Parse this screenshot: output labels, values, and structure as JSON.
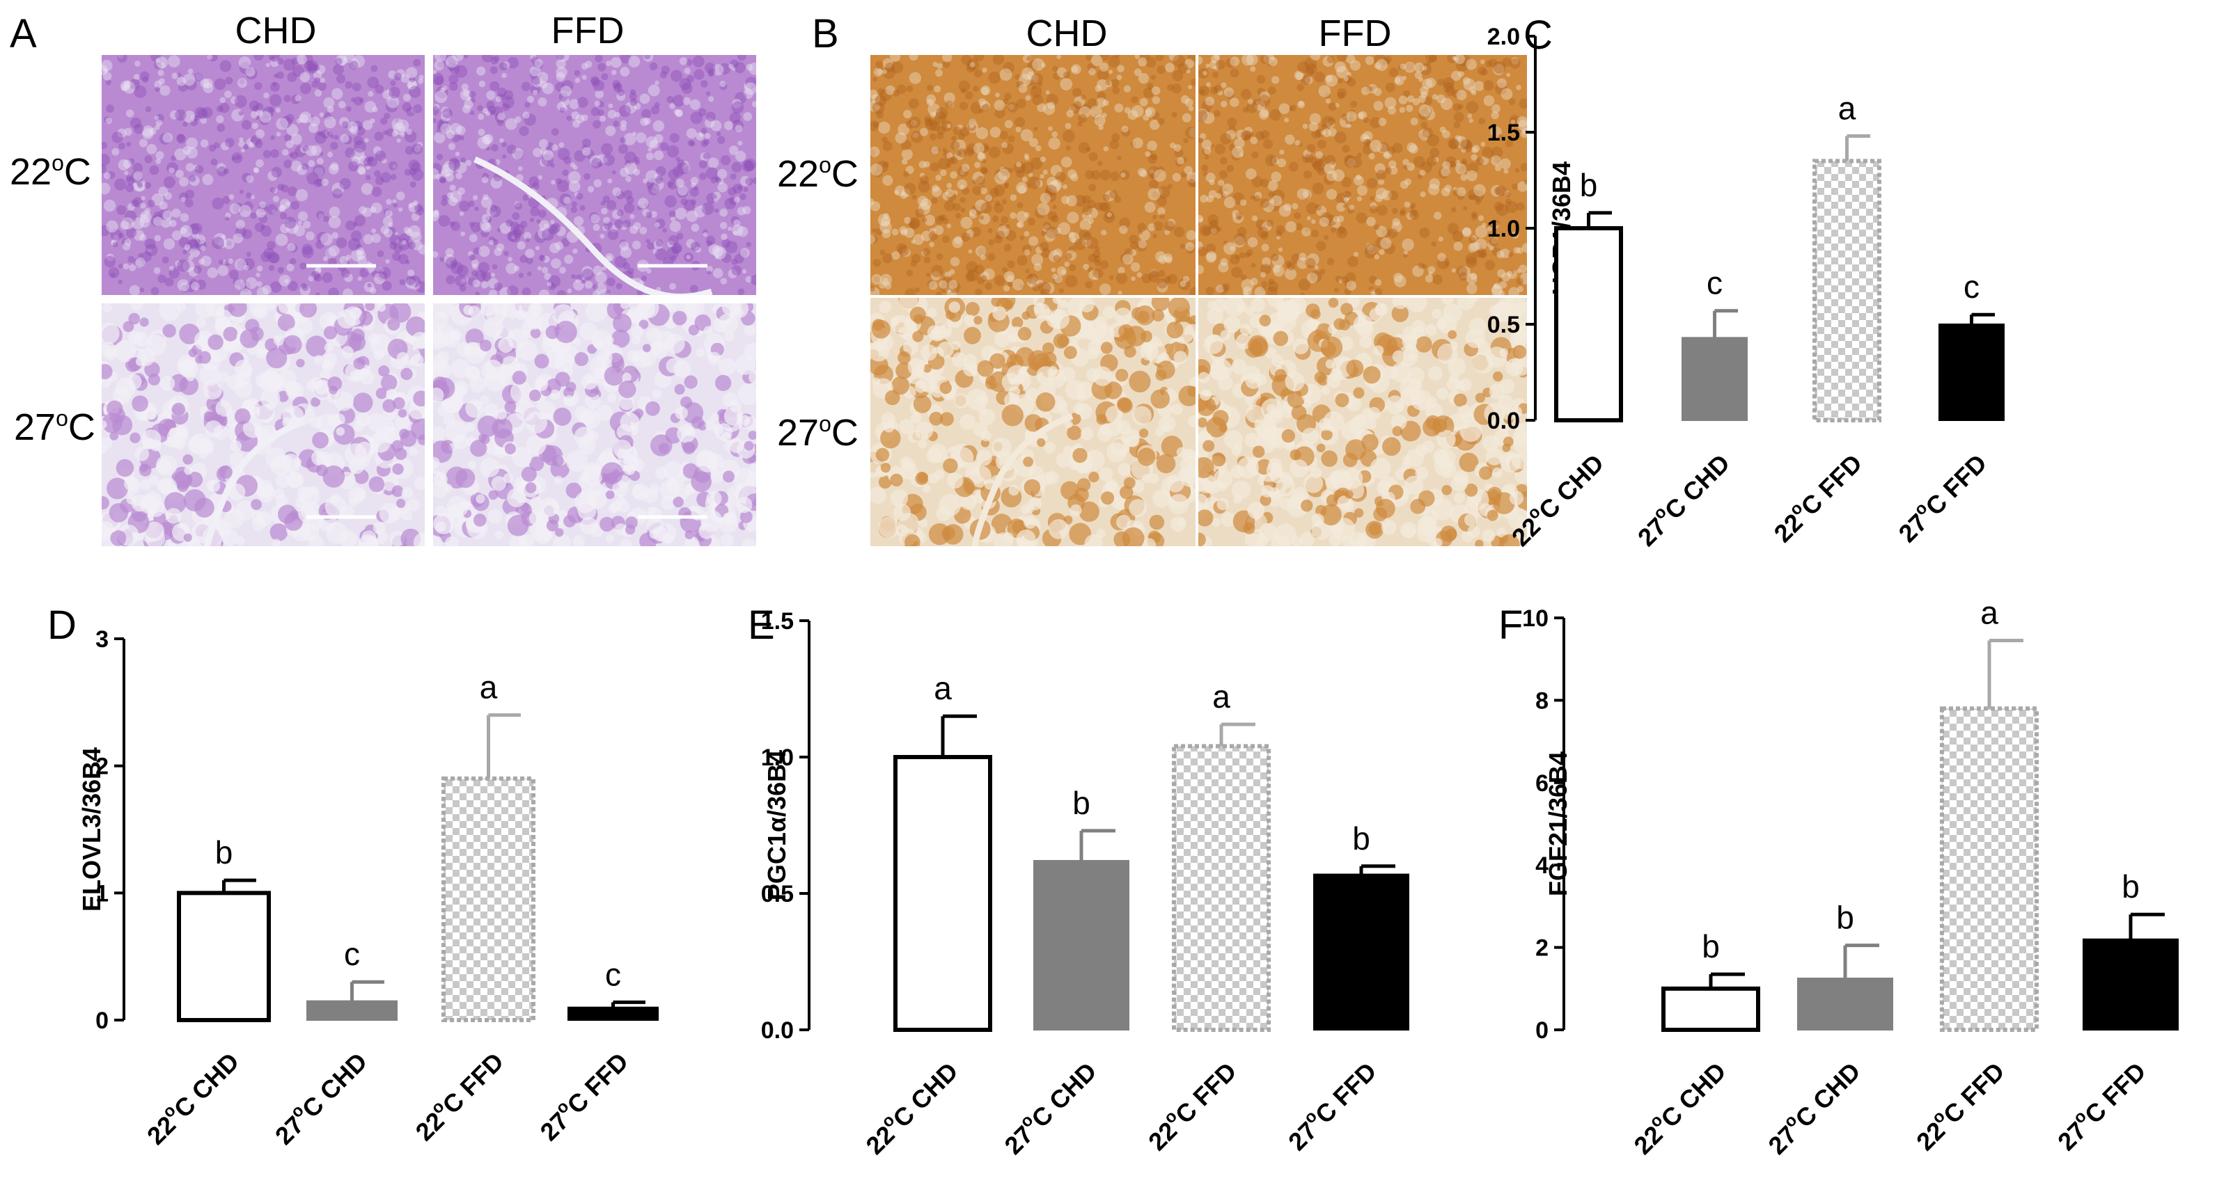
{
  "micrographs": [
    {
      "panel": "A",
      "columns": [
        "CHD",
        "FFD"
      ],
      "rows": [
        "22",
        "27"
      ],
      "row_unit": "C",
      "row_degree": "o",
      "stain": "H&E",
      "colors": {
        "base": "#b98ad2",
        "dark": "#8e4fb7",
        "light": "#e8e2f1",
        "vessel": "#f2f0f7"
      }
    },
    {
      "panel": "B",
      "columns": [
        "CHD",
        "FFD"
      ],
      "rows": [
        "22",
        "27"
      ],
      "row_unit": "C",
      "row_degree": "o",
      "stain": "UCP1 IHC",
      "colors": {
        "base": "#cf8a3e",
        "dark": "#b1641e",
        "light": "#ecdcc4",
        "vessel": "#f3eadb"
      }
    }
  ],
  "chart_data": [
    {
      "panel": "C",
      "type": "bar",
      "ylabel": "UCP1/36B4",
      "ylim": [
        0,
        2.0
      ],
      "yticks": [
        "0.0",
        "0.5",
        "1.0",
        "1.5",
        "2.0"
      ],
      "categories": [
        "22oC CHD",
        "27oC CHD",
        "22oC FFD",
        "27oC FFD"
      ],
      "values": [
        1.0,
        0.43,
        1.35,
        0.5
      ],
      "errors": [
        0.08,
        0.14,
        0.13,
        0.05
      ],
      "letters": [
        "b",
        "c",
        "a",
        "c"
      ]
    },
    {
      "panel": "D",
      "type": "bar",
      "ylabel": "ELOVL3/36B4",
      "ylim": [
        0,
        3
      ],
      "yticks": [
        "0",
        "1",
        "2",
        "3"
      ],
      "categories": [
        "22oC CHD",
        "27oC CHD",
        "22oC FFD",
        "27oC FFD"
      ],
      "values": [
        1.0,
        0.15,
        1.9,
        0.1
      ],
      "errors": [
        0.1,
        0.15,
        0.5,
        0.04
      ],
      "letters": [
        "b",
        "c",
        "a",
        "c"
      ]
    },
    {
      "panel": "E",
      "type": "bar",
      "ylabel": "PGC1α/36B4",
      "ylim": [
        0,
        1.5
      ],
      "yticks": [
        "0.0",
        "0.5",
        "1.0",
        "1.5"
      ],
      "categories": [
        "22oC CHD",
        "27oC CHD",
        "22oC FFD",
        "27oC FFD"
      ],
      "values": [
        1.0,
        0.62,
        1.04,
        0.57
      ],
      "errors": [
        0.15,
        0.11,
        0.08,
        0.03
      ],
      "letters": [
        "a",
        "b",
        "a",
        "b"
      ]
    },
    {
      "panel": "F",
      "type": "bar",
      "ylabel": "FGF21/36B4",
      "ylim": [
        0,
        10
      ],
      "yticks": [
        "0",
        "2",
        "4",
        "6",
        "8",
        "10"
      ],
      "categories": [
        "22oC CHD",
        "27oC CHD",
        "22oC FFD",
        "27oC FFD"
      ],
      "values": [
        1.0,
        1.25,
        7.8,
        2.2
      ],
      "errors": [
        0.35,
        0.8,
        1.65,
        0.6
      ],
      "letters": [
        "b",
        "b",
        "a",
        "b"
      ]
    }
  ],
  "style": {
    "bar_styles": [
      "open",
      "gray",
      "checker",
      "black"
    ],
    "gray": "#808080",
    "checker_a": "#c8c8c8",
    "checker_b": "#ffffff",
    "checker_edge": "#a8a8a8"
  }
}
